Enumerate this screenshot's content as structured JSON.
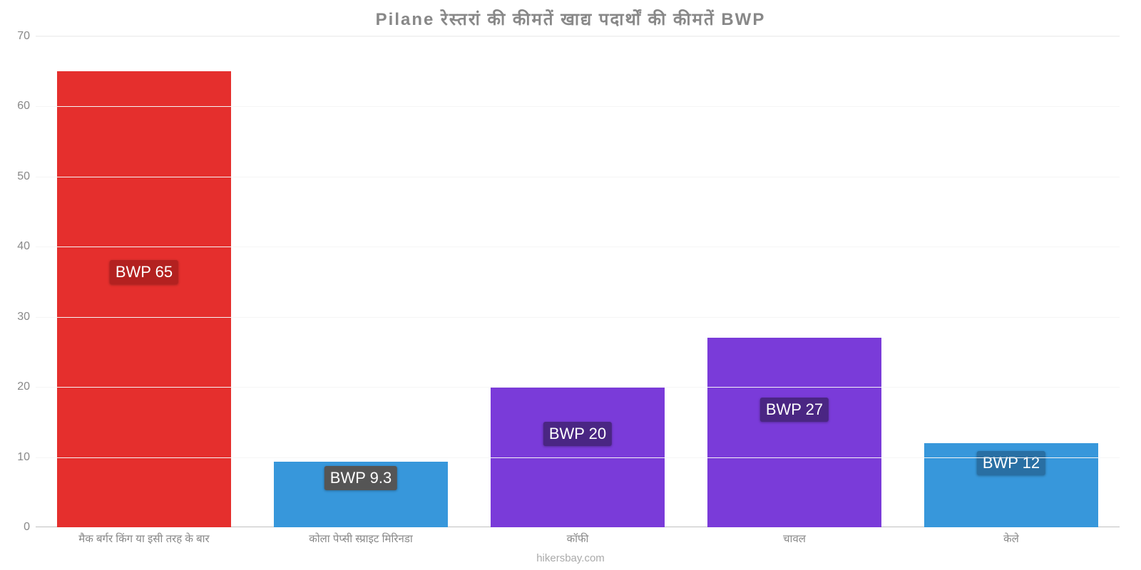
{
  "chart": {
    "type": "bar",
    "title": "Pilane रेस्तरां की कीमतें खाद्य पदार्थों की कीमतें BWP",
    "title_fontsize": 24,
    "title_color": "#888888",
    "background_color": "#ffffff",
    "grid_color": "#f5f5f5",
    "baseline_color": "#c0c0c0",
    "tick_color": "#888888",
    "ylim": [
      0,
      70
    ],
    "ytick_step": 10,
    "yticks": [
      0,
      10,
      20,
      30,
      40,
      50,
      60,
      70
    ],
    "label_fontsize": 16,
    "xtick_fontsize": 15,
    "value_label_fontsize": 22,
    "bar_width_pct": 80,
    "bars": [
      {
        "category": "मैक बर्गर किंग या इसी तरह के बार",
        "value": 65,
        "value_label": "BWP 65",
        "bar_color": "#e52f2d",
        "badge_bg": "#b32120",
        "badge_pos_pct": 48
      },
      {
        "category": "कोला पेप्सी स्प्राइट मिरिनडा",
        "value": 9.3,
        "value_label": "BWP 9.3",
        "bar_color": "#3797db",
        "badge_bg": "#555555",
        "badge_pos_pct": 90
      },
      {
        "category": "कॉफी",
        "value": 20,
        "value_label": "BWP 20",
        "bar_color": "#7a3bd9",
        "badge_bg": "#4a2683",
        "badge_pos_pct": 81
      },
      {
        "category": "चावल",
        "value": 27,
        "value_label": "BWP 27",
        "bar_color": "#7a3bd9",
        "badge_bg": "#4a2683",
        "badge_pos_pct": 76
      },
      {
        "category": "केले",
        "value": 12,
        "value_label": "BWP 12",
        "bar_color": "#3797db",
        "badge_bg": "#296fa3",
        "badge_pos_pct": 87
      }
    ],
    "source": "hikersbay.com"
  }
}
